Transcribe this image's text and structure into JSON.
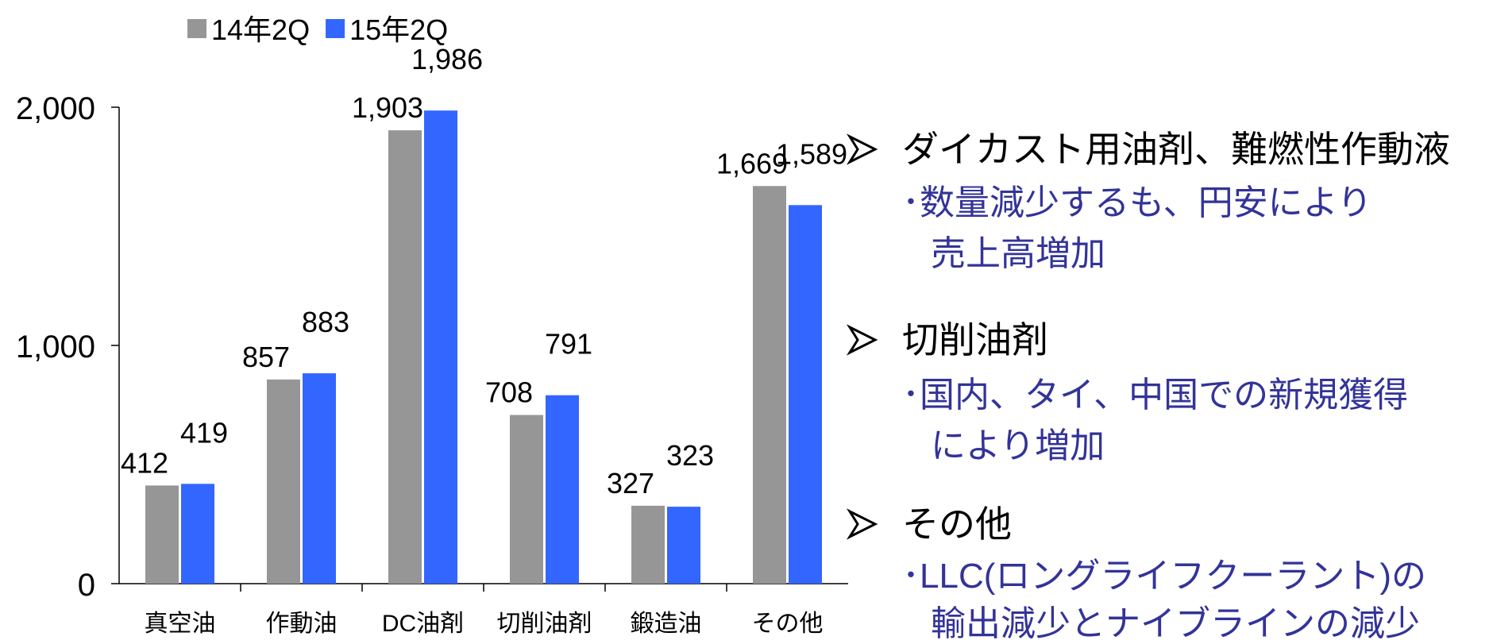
{
  "chart_data": {
    "type": "bar",
    "categories": [
      "真空油",
      "作動油",
      "DC油剤",
      "切削油剤",
      "鍛造油",
      "その他"
    ],
    "series": [
      {
        "name": "14年2Q",
        "color": "#969696",
        "values": [
          412,
          857,
          1903,
          708,
          327,
          1669
        ],
        "value_labels": [
          "412",
          "857",
          "1,903",
          "708",
          "327",
          "1,669"
        ]
      },
      {
        "name": "15年2Q",
        "color": "#3366ff",
        "values": [
          419,
          883,
          1986,
          791,
          323,
          1589
        ],
        "value_labels": [
          "419",
          "883",
          "1,986",
          "791",
          "323",
          "1,589"
        ]
      }
    ],
    "ylim": [
      0,
      2000
    ],
    "yticks": [
      0,
      {
        "value": 1000,
        "label": "1,000"
      },
      {
        "value": 2000,
        "label": "2,000"
      }
    ],
    "legend": "top",
    "annotations": [
      {
        "heading": "ダイカスト用油剤、難燃性作動液",
        "lines": [
          "･数量減少するも、円安により",
          "売上高増加"
        ]
      },
      {
        "heading": "切削油剤",
        "lines": [
          "･国内、タイ、中国での新規獲得",
          "により増加"
        ]
      },
      {
        "heading": "その他",
        "lines": [
          "･LLC(ロングライフクーラント)の",
          "輸出減少とナイブラインの減少"
        ]
      }
    ]
  }
}
